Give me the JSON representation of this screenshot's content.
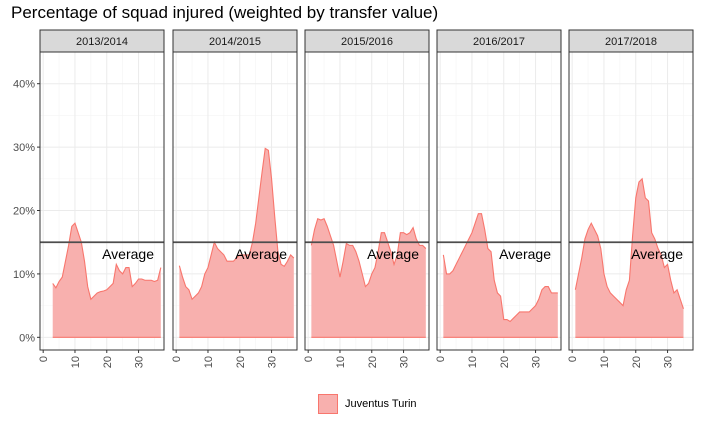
{
  "title": "Percentage of squad injured (weighted by transfer value)",
  "legend": {
    "label": "Juventus Turin",
    "fill_color": "#f8b0ae",
    "line_color": "#f8766d"
  },
  "colors": {
    "panel_background": "#ffffff",
    "grid": "#ebebeb",
    "strip_fill": "#d9d9d9",
    "average_line": "#4d4d4d"
  },
  "chart_data": {
    "type": "area",
    "title": "Percentage of squad injured (weighted by transfer value)",
    "xlabel": "",
    "ylabel": "",
    "xlim": [
      -1,
      38
    ],
    "ylim": [
      -2,
      45
    ],
    "y_ticks": [
      0,
      10,
      20,
      30,
      40
    ],
    "y_tick_labels": [
      "0%",
      "10%",
      "20%",
      "30%",
      "40%"
    ],
    "x_ticks": [
      0,
      10,
      20,
      30
    ],
    "x_tick_labels": [
      "0",
      "10",
      "20",
      "30"
    ],
    "grid": true,
    "legend_position": "bottom",
    "average": {
      "label": "Average",
      "value": 15
    },
    "panels": [
      {
        "season": "2013/2014",
        "series": [
          {
            "name": "Juventus Turin",
            "x": [
              3,
              4,
              5,
              6,
              7,
              8,
              9,
              10,
              11,
              12,
              13,
              14,
              15,
              16,
              17,
              18,
              19,
              20,
              21,
              22,
              23,
              24,
              25,
              26,
              27,
              28,
              29,
              30,
              31,
              32,
              33,
              34,
              35,
              36,
              37
            ],
            "y": [
              8.5,
              7.8,
              8.8,
              9.5,
              12,
              14.5,
              17.5,
              18,
              16.5,
              15,
              12,
              8,
              6,
              6.5,
              7,
              7.2,
              7.3,
              7.5,
              8,
              8.5,
              11.5,
              10.5,
              10,
              11,
              11,
              8,
              8.5,
              9.2,
              9.2,
              9,
              9,
              9,
              8.8,
              9,
              11
            ]
          }
        ]
      },
      {
        "season": "2014/2015",
        "series": [
          {
            "name": "Juventus Turin",
            "x": [
              1,
              2,
              3,
              4,
              5,
              6,
              7,
              8,
              9,
              10,
              11,
              12,
              13,
              14,
              15,
              16,
              17,
              18,
              19,
              20,
              21,
              22,
              23,
              24,
              25,
              26,
              27,
              28,
              29,
              30,
              31,
              32,
              33,
              34,
              35,
              36,
              37
            ],
            "y": [
              11.3,
              9.5,
              8,
              7.5,
              6,
              6.5,
              7,
              8,
              10,
              11,
              13,
              15,
              14,
              13.5,
              13,
              12,
              12,
              12,
              12.5,
              13,
              13,
              13,
              13,
              15,
              18,
              22,
              26,
              29.8,
              29.5,
              25,
              19,
              13.5,
              11.5,
              11.2,
              12,
              13,
              12.5
            ]
          }
        ]
      },
      {
        "season": "2015/2016",
        "series": [
          {
            "name": "Juventus Turin",
            "x": [
              1,
              2,
              3,
              4,
              5,
              6,
              7,
              8,
              9,
              10,
              11,
              12,
              13,
              14,
              15,
              16,
              17,
              18,
              19,
              20,
              21,
              22,
              23,
              24,
              25,
              26,
              27,
              28,
              29,
              30,
              31,
              32,
              33,
              34,
              35,
              36,
              37
            ],
            "y": [
              14.5,
              17,
              18.7,
              18.5,
              18.7,
              17.5,
              16,
              14.5,
              12,
              9.5,
              12,
              14.8,
              14.5,
              14.5,
              13.5,
              12,
              10,
              8,
              8.5,
              10,
              11,
              13.5,
              16.5,
              16.5,
              15,
              13.5,
              11.5,
              13,
              16.5,
              16.5,
              16.2,
              16.5,
              17.3,
              15.5,
              14.5,
              14.5,
              14
            ]
          }
        ]
      },
      {
        "season": "2016/2017",
        "series": [
          {
            "name": "Juventus Turin",
            "x": [
              1,
              2,
              3,
              4,
              5,
              6,
              7,
              8,
              9,
              10,
              11,
              12,
              13,
              14,
              15,
              16,
              17,
              18,
              19,
              20,
              21,
              22,
              23,
              24,
              25,
              26,
              27,
              28,
              29,
              30,
              31,
              32,
              33,
              34,
              35,
              36,
              37
            ],
            "y": [
              13,
              10,
              10,
              10.5,
              11.5,
              12.5,
              13.5,
              14.5,
              15.5,
              16.5,
              18,
              19.5,
              19.5,
              17,
              14,
              13.5,
              9,
              7,
              6.5,
              2.8,
              2.8,
              2.5,
              3,
              3.5,
              4,
              4,
              4,
              4,
              4.5,
              5,
              6,
              7.5,
              8,
              8,
              7,
              7,
              7
            ]
          }
        ]
      },
      {
        "season": "2017/2018",
        "series": [
          {
            "name": "Juventus Turin",
            "x": [
              1,
              2,
              3,
              4,
              5,
              6,
              7,
              8,
              9,
              10,
              11,
              12,
              13,
              14,
              15,
              16,
              17,
              18,
              19,
              20,
              21,
              22,
              23,
              24,
              25,
              26,
              27,
              28,
              29,
              30,
              31,
              32,
              33,
              34,
              35
            ],
            "y": [
              7.5,
              10,
              12.5,
              15.5,
              17,
              18,
              17,
              16,
              14,
              10,
              8,
              7,
              6.5,
              6,
              5.5,
              5,
              7.5,
              9,
              16,
              22,
              24.5,
              25,
              22,
              21.5,
              16.5,
              15.5,
              14,
              13,
              11,
              11.5,
              9,
              7,
              7.5,
              6,
              4.5
            ]
          }
        ]
      }
    ]
  }
}
